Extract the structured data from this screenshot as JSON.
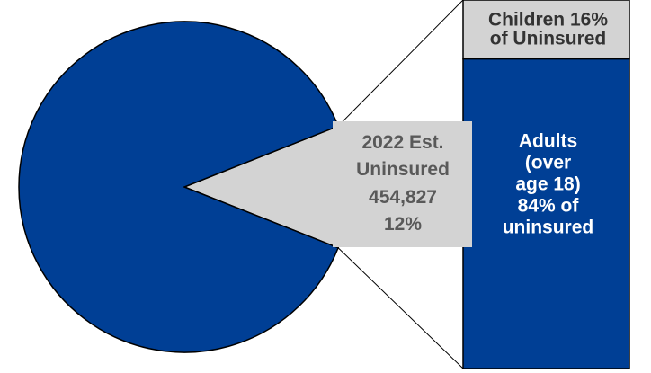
{
  "chart_data": {
    "type": "pie",
    "categories": [
      "2022 Est. Uninsured",
      null
    ],
    "values": [
      12,
      88
    ],
    "value_labels": [
      "12%",
      null
    ],
    "colors": [
      "#d3d3d3",
      "#003f95"
    ],
    "count": 454827,
    "count_label": "454,827",
    "bar": {
      "labels": [
        "Children 16% of Uninsured",
        "Adults (over age 18) 84% of uninsured"
      ],
      "values": [
        16,
        84
      ],
      "colors": [
        "#d3d3d3",
        "#003f95"
      ]
    }
  }
}
